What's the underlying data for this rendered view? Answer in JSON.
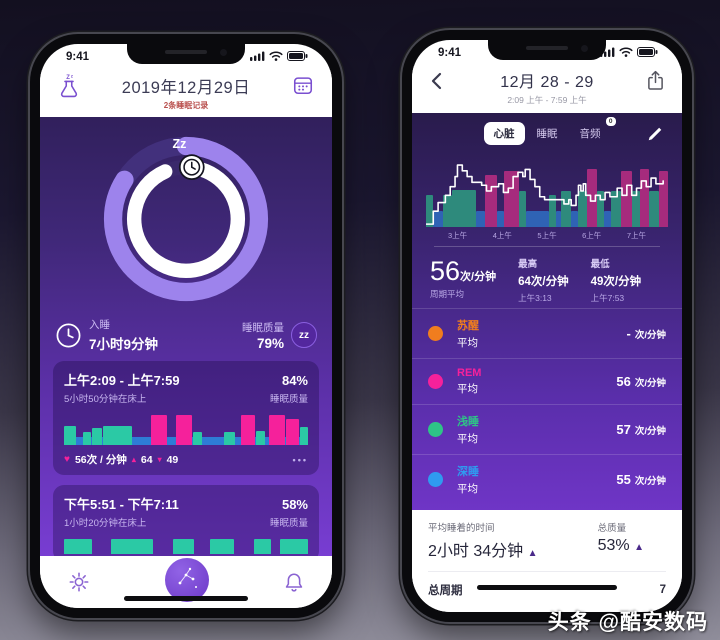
{
  "watermark": "头条 @酷安数码",
  "colors": {
    "left_bars": {
      "t": "#2bc9a5",
      "m": "#f5219b",
      "b": "#2e7cd6"
    },
    "right_bars": {
      "t": "#2e8a7c",
      "m": "#a62b7d",
      "b": "#2f63b5"
    },
    "ring_outer": "#9d83ec",
    "ring_inner": "#ffffff"
  },
  "left": {
    "status_time": "9:41",
    "header": {
      "title": "2019年12月29日",
      "subtitle": "2条睡眠记录"
    },
    "ring": {
      "zz": "Zz",
      "outer_pct": 84,
      "inner_pct": 90
    },
    "summary": {
      "sleep_label": "入睡",
      "sleep_value": "7小时9分钟",
      "quality_label": "睡眠质量",
      "quality_value": "79%",
      "badge": "zz"
    },
    "sessions": [
      {
        "range": "上午2:09 - 上午7:59",
        "pct": "84%",
        "duration": "5小时50分钟在床上",
        "quality_label": "睡眠质量",
        "heart_avg": "56次 / 分钟",
        "heart_max": "64",
        "heart_min": "49",
        "up": "▴",
        "down": "▾",
        "more": "•••",
        "bars": [
          [
            "t",
            6,
            58
          ],
          [
            "g",
            2,
            0
          ],
          [
            "t",
            4,
            40
          ],
          [
            "t",
            5,
            52
          ],
          [
            "t",
            14,
            58
          ],
          [
            "g",
            8,
            0
          ],
          [
            "m",
            8,
            95
          ],
          [
            "g",
            3,
            0
          ],
          [
            "m",
            8,
            95
          ],
          [
            "t",
            4,
            42
          ],
          [
            "g",
            10,
            0
          ],
          [
            "t",
            5,
            40
          ],
          [
            "g",
            2,
            0
          ],
          [
            "m",
            7,
            95
          ],
          [
            "t",
            4,
            44
          ],
          [
            "g",
            1,
            0
          ],
          [
            "m",
            8,
            95
          ],
          [
            "m",
            6,
            82
          ],
          [
            "t",
            4,
            55
          ]
        ]
      },
      {
        "range": "下午5:51 - 下午7:11",
        "pct": "58%",
        "duration": "1小时20分钟在床上",
        "quality_label": "睡眠质量",
        "bars": [
          [
            "t",
            8,
            100
          ],
          [
            "g",
            5,
            0
          ],
          [
            "t",
            12,
            100
          ],
          [
            "g",
            5,
            0
          ],
          [
            "t",
            6,
            100
          ],
          [
            "g",
            4,
            0
          ],
          [
            "t",
            7,
            100
          ],
          [
            "g",
            5,
            0
          ],
          [
            "t",
            5,
            100
          ],
          [
            "g",
            2,
            0
          ],
          [
            "t",
            8,
            100
          ]
        ]
      }
    ]
  },
  "right": {
    "status_time": "9:41",
    "header": {
      "title": "12月 28 - 29",
      "subtitle": "2:09 上午 - 7:59 上午"
    },
    "tabs": [
      {
        "label": "心脏"
      },
      {
        "label": "睡眠"
      },
      {
        "label": "音频",
        "badge": "0"
      }
    ],
    "chart": {
      "x_labels": [
        "3上午",
        "4上午",
        "5上午",
        "6上午",
        "7上午"
      ],
      "bars": [
        [
          "t",
          3,
          45
        ],
        [
          "b",
          4,
          22
        ],
        [
          "t",
          4,
          45
        ],
        [
          "t",
          10,
          52
        ],
        [
          "b",
          4,
          22
        ],
        [
          "m",
          5,
          72
        ],
        [
          "b",
          3,
          22
        ],
        [
          "m",
          6,
          78
        ],
        [
          "t",
          3,
          50
        ],
        [
          "b",
          10,
          22
        ],
        [
          "t",
          3,
          45
        ],
        [
          "b",
          2,
          22
        ],
        [
          "t",
          4,
          50
        ],
        [
          "b",
          3,
          22
        ],
        [
          "t",
          4,
          50
        ],
        [
          "m",
          4,
          80
        ],
        [
          "t",
          3,
          50
        ],
        [
          "b",
          3,
          22
        ],
        [
          "t",
          4,
          50
        ],
        [
          "m",
          5,
          78
        ],
        [
          "t",
          3,
          50
        ],
        [
          "m",
          4,
          80
        ],
        [
          "t",
          4,
          50
        ],
        [
          "m",
          4,
          78
        ]
      ],
      "line": [
        [
          0,
          96
        ],
        [
          3,
          78
        ],
        [
          5,
          66
        ],
        [
          8,
          56
        ],
        [
          10,
          44
        ],
        [
          12,
          30
        ],
        [
          13,
          14
        ],
        [
          15,
          22
        ],
        [
          17,
          30
        ],
        [
          19,
          38
        ],
        [
          23,
          42
        ],
        [
          25,
          50
        ],
        [
          27,
          44
        ],
        [
          30,
          40
        ],
        [
          32,
          52
        ],
        [
          34,
          46
        ],
        [
          36,
          30
        ],
        [
          38,
          24
        ],
        [
          40,
          30
        ],
        [
          41,
          20
        ],
        [
          43,
          34
        ],
        [
          45,
          44
        ],
        [
          47,
          58
        ],
        [
          49,
          62
        ],
        [
          56,
          62
        ],
        [
          57,
          68
        ],
        [
          59,
          62
        ],
        [
          60,
          70
        ],
        [
          62,
          56
        ],
        [
          63,
          42
        ],
        [
          64,
          50
        ],
        [
          65,
          40
        ],
        [
          66,
          56
        ],
        [
          68,
          64
        ],
        [
          70,
          56
        ],
        [
          72,
          62
        ],
        [
          74,
          52
        ],
        [
          76,
          58
        ],
        [
          79,
          46
        ],
        [
          81,
          56
        ],
        [
          83,
          42
        ],
        [
          85,
          56
        ],
        [
          87,
          46
        ],
        [
          89,
          36
        ],
        [
          91,
          44
        ],
        [
          93,
          32
        ],
        [
          95,
          40
        ],
        [
          98,
          36
        ]
      ]
    },
    "stats": {
      "big_num": "56",
      "big_unit": "次/分钟",
      "big_label": "周期平均",
      "max_label": "最高",
      "max_value": "64次/分钟",
      "max_time": "上午3:13",
      "min_label": "最低",
      "min_value": "49次/分钟",
      "min_time": "上午7:53"
    },
    "stages": [
      {
        "name": "苏醒",
        "color": "#f07d1e",
        "sub": "平均",
        "num": "-",
        "unit": "次/分钟"
      },
      {
        "name": "REM",
        "color": "#f5219b",
        "sub": "平均",
        "num": "56",
        "unit": "次/分钟"
      },
      {
        "name": "浅睡",
        "color": "#2ec487",
        "sub": "平均",
        "num": "57",
        "unit": "次/分钟"
      },
      {
        "name": "深睡",
        "color": "#2f9bf0",
        "sub": "平均",
        "num": "55",
        "unit": "次/分钟"
      }
    ],
    "footer": {
      "avg_label": "平均睡着的时间",
      "avg_value": "2小时 34分钟",
      "arrow": "▲",
      "quality_label": "总质量",
      "quality_value": "53%",
      "cycles_label": "总周期",
      "cycles_value": "7"
    }
  }
}
